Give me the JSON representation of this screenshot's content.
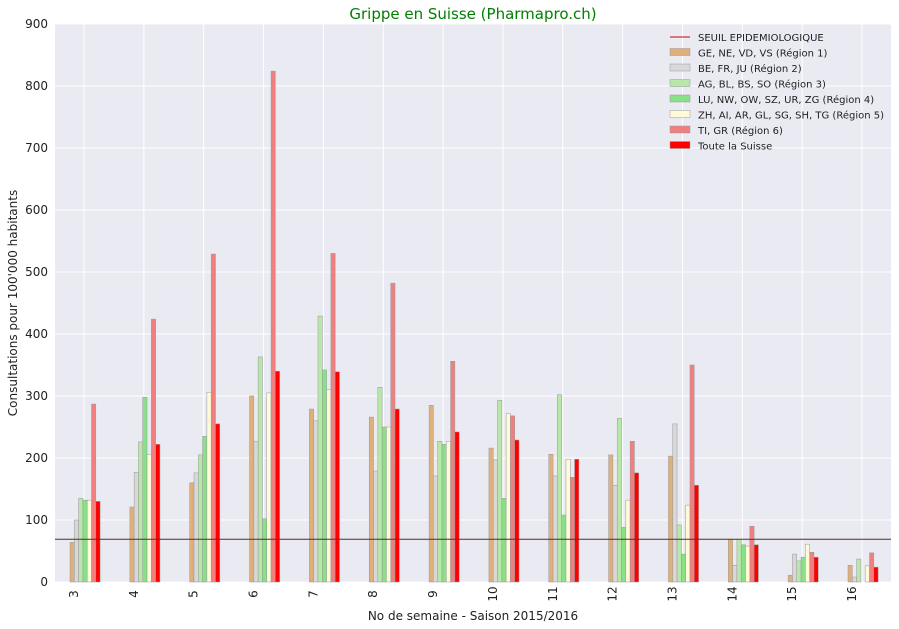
{
  "chart_data": {
    "type": "bar",
    "title": "Grippe en Suisse (Pharmapro.ch)",
    "xlabel": "No de semaine - Saison 2015/2016",
    "ylabel": "Consultations pour 100'000 habitants",
    "ylim": [
      0,
      900
    ],
    "yticks": [
      0,
      100,
      200,
      300,
      400,
      500,
      600,
      700,
      800,
      900
    ],
    "grid": true,
    "legend_position": "top-right",
    "categories": [
      "3",
      "4",
      "5",
      "6",
      "7",
      "8",
      "9",
      "10",
      "11",
      "12",
      "13",
      "14",
      "15",
      "16"
    ],
    "threshold": {
      "name": "SEUIL EPIDEMIOLOGIQUE",
      "value": 69,
      "color": "#cc0000"
    },
    "series": [
      {
        "name": "GE, NE, VD, VS (Région 1)",
        "color": "#e0b07a",
        "values": [
          64,
          121,
          160,
          300,
          279,
          266,
          285,
          216,
          206,
          205,
          203,
          69,
          11,
          27
        ]
      },
      {
        "name": "BE, FR, JU (Région 2)",
        "color": "#d8d8d8",
        "values": [
          100,
          177,
          176,
          227,
          260,
          179,
          171,
          197,
          171,
          156,
          255,
          27,
          45,
          8
        ]
      },
      {
        "name": "AG, BL, BS, SO (Région 3)",
        "color": "#b8e8a8",
        "values": [
          135,
          226,
          205,
          363,
          429,
          314,
          227,
          293,
          302,
          264,
          92,
          69,
          34,
          37
        ]
      },
      {
        "name": "LU, NW, OW, SZ, UR, ZG (Région 4)",
        "color": "#88e088",
        "values": [
          132,
          298,
          235,
          102,
          342,
          250,
          222,
          135,
          108,
          88,
          45,
          60,
          40,
          0
        ]
      },
      {
        "name": "ZH, AI, AR, GL, SG, SH, TG (Région 5)",
        "color": "#fffbd8",
        "values": [
          132,
          206,
          306,
          305,
          310,
          250,
          227,
          272,
          198,
          132,
          124,
          58,
          61,
          26
        ]
      },
      {
        "name": "TI, GR (Région 6)",
        "color": "#f08080",
        "values": [
          287,
          424,
          529,
          824,
          530,
          482,
          356,
          268,
          169,
          227,
          350,
          90,
          48,
          47
        ]
      },
      {
        "name": "Toute la Suisse",
        "color": "#ff0000",
        "values": [
          130,
          222,
          255,
          340,
          339,
          279,
          242,
          229,
          198,
          176,
          156,
          60,
          40,
          24
        ]
      }
    ]
  }
}
